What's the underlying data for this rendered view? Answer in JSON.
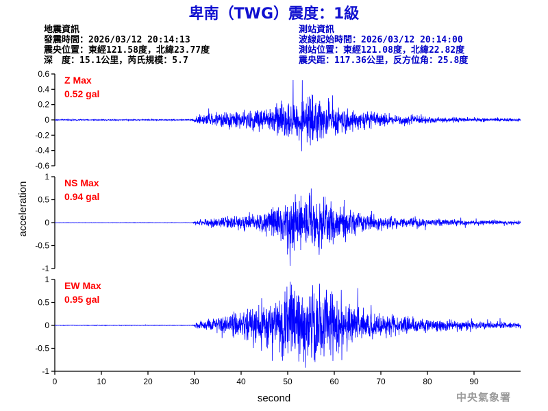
{
  "title": "卑南（TWG）震度：1級",
  "earthquake_info": {
    "heading": "地震資訊",
    "origin_time": "發震時間：2026/03/12 20:14:13",
    "epicenter": "震央位置：東經121.58度，北緯23.77度",
    "depth_magnitude": "深　度：15.1公里，芮氏規模：5.7"
  },
  "station_info": {
    "heading": "測站資訊",
    "waveform_start": "波線起始時間：2026/03/12 20:14:00",
    "location": "測站位置：東經121.08度，北緯22.82度",
    "distance": "震央距：117.36公里，反方位角：25.8度"
  },
  "agency": "中央氣象署",
  "colors": {
    "title": "#1010d0",
    "trace": "#0000ff",
    "max_label": "#ff0000",
    "station_text": "#0000c8"
  },
  "chart_data": {
    "type": "line",
    "xlabel": "second",
    "ylabel": "acceleration",
    "xlim": [
      0,
      100
    ],
    "xticks": [
      0,
      10,
      20,
      30,
      40,
      50,
      60,
      70,
      80,
      90
    ],
    "grid": false,
    "series": [
      {
        "label_line1": "Z Max",
        "label_line2": "0.52 gal",
        "ylim": [
          -0.6,
          0.6
        ],
        "yticks": [
          -0.6,
          -0.4,
          -0.2,
          0,
          0.2,
          0.4,
          0.6
        ],
        "ytick_labels": [
          "-0.6",
          "-0.4",
          "-0.2",
          "0",
          "0.2",
          "0.4",
          "0.6"
        ],
        "max_abs": 0.52,
        "envelope": [
          [
            0,
            0.012
          ],
          [
            29,
            0.012
          ],
          [
            31,
            0.1
          ],
          [
            35,
            0.14
          ],
          [
            40,
            0.18
          ],
          [
            44,
            0.24
          ],
          [
            48,
            0.32
          ],
          [
            51,
            0.4
          ],
          [
            53,
            0.44
          ],
          [
            55,
            0.46
          ],
          [
            58,
            0.36
          ],
          [
            62,
            0.26
          ],
          [
            66,
            0.18
          ],
          [
            70,
            0.13
          ],
          [
            75,
            0.1
          ],
          [
            80,
            0.07
          ],
          [
            85,
            0.05
          ],
          [
            90,
            0.04
          ],
          [
            100,
            0.03
          ]
        ]
      },
      {
        "label_line1": "NS Max",
        "label_line2": "0.94 gal",
        "ylim": [
          -1,
          1
        ],
        "yticks": [
          -1,
          -0.5,
          0,
          0.5,
          1
        ],
        "ytick_labels": [
          "-1",
          "-0.5",
          "0",
          "0.5",
          "1"
        ],
        "max_abs": 0.94,
        "envelope": [
          [
            0,
            0.003
          ],
          [
            29.5,
            0.003
          ],
          [
            31,
            0.05
          ],
          [
            35,
            0.1
          ],
          [
            40,
            0.16
          ],
          [
            45,
            0.22
          ],
          [
            49,
            0.4
          ],
          [
            52,
            0.62
          ],
          [
            55,
            0.58
          ],
          [
            58,
            0.55
          ],
          [
            62,
            0.32
          ],
          [
            66,
            0.2
          ],
          [
            70,
            0.15
          ],
          [
            75,
            0.12
          ],
          [
            80,
            0.09
          ],
          [
            85,
            0.06
          ],
          [
            90,
            0.05
          ],
          [
            100,
            0.04
          ]
        ]
      },
      {
        "label_line1": "EW Max",
        "label_line2": "0.95 gal",
        "ylim": [
          -1,
          1
        ],
        "yticks": [
          -1,
          -0.5,
          0,
          0.5,
          1
        ],
        "ytick_labels": [
          "-1",
          "-0.5",
          "0",
          "0.5",
          "1"
        ],
        "max_abs": 0.95,
        "envelope": [
          [
            0,
            0.003
          ],
          [
            29.5,
            0.003
          ],
          [
            31,
            0.05
          ],
          [
            35,
            0.11
          ],
          [
            40,
            0.18
          ],
          [
            45,
            0.28
          ],
          [
            49,
            0.42
          ],
          [
            52,
            0.62
          ],
          [
            55,
            0.56
          ],
          [
            58,
            0.5
          ],
          [
            62,
            0.33
          ],
          [
            66,
            0.22
          ],
          [
            70,
            0.16
          ],
          [
            75,
            0.12
          ],
          [
            80,
            0.09
          ],
          [
            85,
            0.07
          ],
          [
            90,
            0.05
          ],
          [
            100,
            0.04
          ]
        ]
      }
    ]
  }
}
